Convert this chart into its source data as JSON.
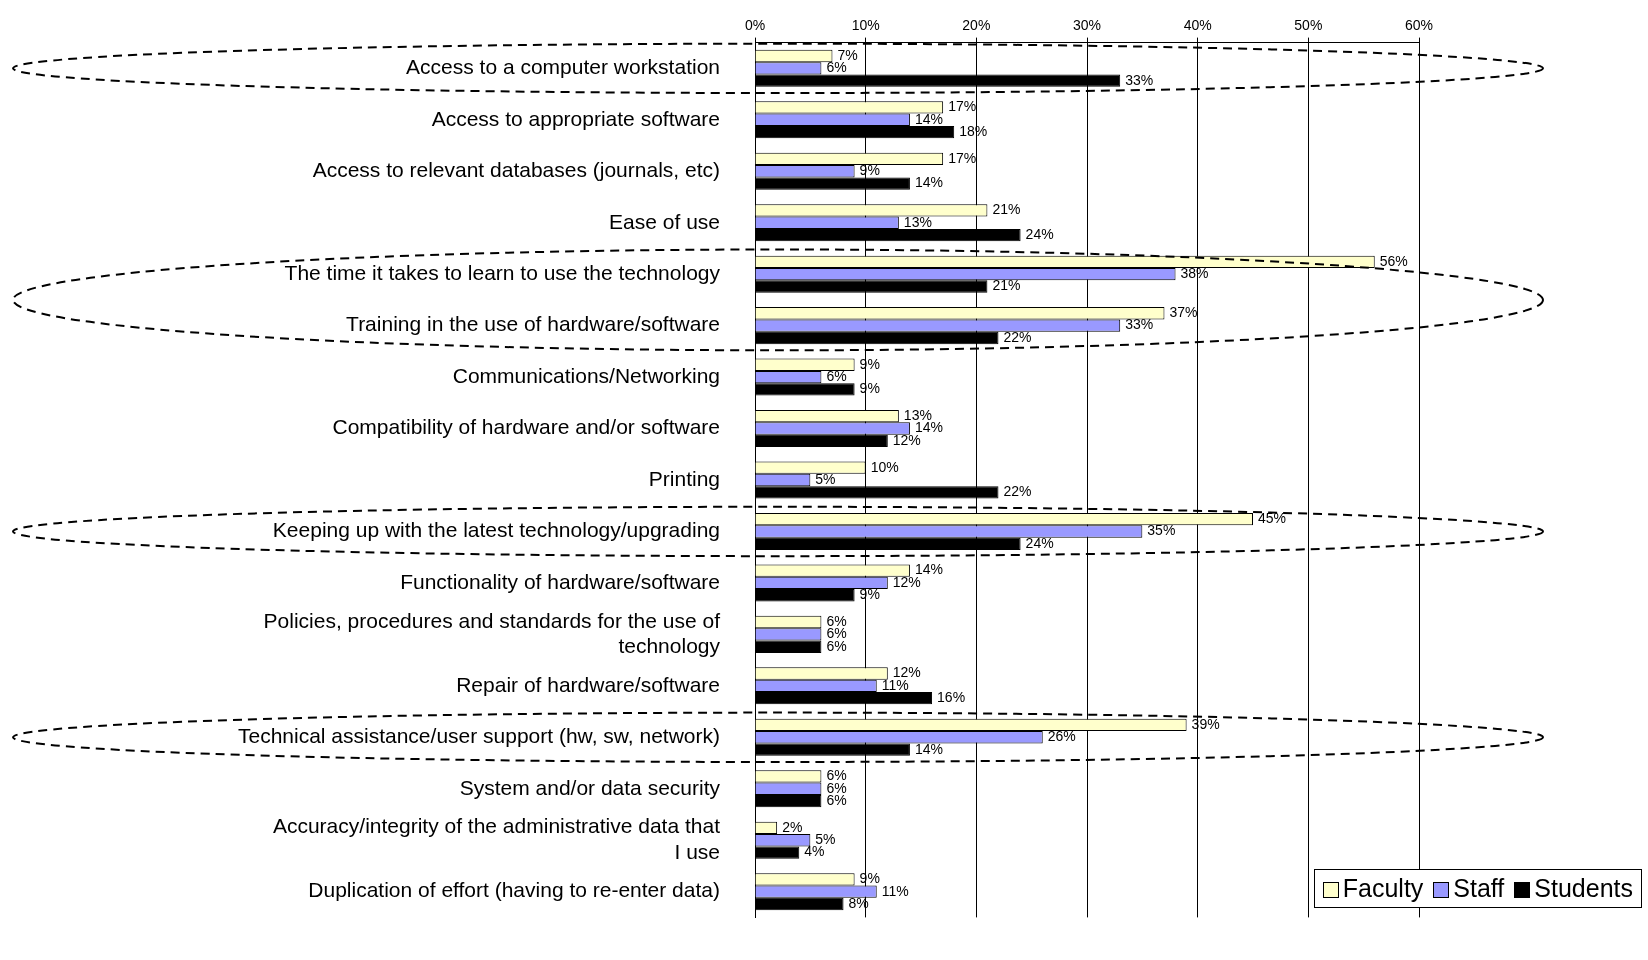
{
  "chart_data": {
    "type": "bar",
    "orientation": "horizontal",
    "categories": [
      "Access to a computer workstation",
      "Access to appropriate software",
      "Access to relevant databases (journals, etc)",
      "Ease of use",
      "The time it takes to learn to use the technology",
      "Training in the use of hardware/software",
      "Communications/Networking",
      "Compatibility of hardware and/or software",
      "Printing",
      "Keeping up with the latest technology/upgrading",
      "Functionality of hardware/software",
      "Policies, procedures and standards for the use of technology",
      "Repair of hardware/software",
      "Technical assistance/user support (hw, sw, network)",
      "System and/or data security",
      "Accuracy/integrity of the administrative data that I use",
      "Duplication of effort (having to re-enter data)"
    ],
    "series": [
      {
        "name": "Faculty",
        "color": "#ffffcc",
        "values": [
          7,
          17,
          17,
          21,
          56,
          37,
          9,
          13,
          10,
          45,
          14,
          6,
          12,
          39,
          6,
          2,
          9
        ],
        "value_labels": [
          "7%",
          "17%",
          "17%",
          "21%",
          "56%",
          "37%",
          "9%",
          "13%",
          "10%",
          "45%",
          "14%",
          "6%",
          "12%",
          "39%",
          "6%",
          "2%",
          "9%"
        ]
      },
      {
        "name": "Staff",
        "color": "#9999ff",
        "values": [
          6,
          14,
          9,
          13,
          38,
          33,
          6,
          14,
          5,
          35,
          12,
          6,
          11,
          26,
          6,
          5,
          11
        ],
        "value_labels": [
          "6%",
          "14%",
          "9%",
          "13%",
          "38%",
          "33%",
          "6%",
          "14%",
          "5%",
          "35%",
          "12%",
          "6%",
          "11%",
          "26%",
          "6%",
          "5%",
          "11%"
        ]
      },
      {
        "name": "Students",
        "color": "#000000",
        "values": [
          33,
          18,
          14,
          24,
          21,
          22,
          9,
          12,
          22,
          24,
          9,
          6,
          16,
          14,
          6,
          4,
          8
        ],
        "value_labels": [
          "33%",
          "18%",
          "14%",
          "24%",
          "21%",
          "22%",
          "9%",
          "12%",
          "22%",
          "24%",
          "9%",
          "6%",
          "16%",
          "14%",
          "6%",
          "4%",
          "8%"
        ]
      }
    ],
    "xlim": [
      0,
      60
    ],
    "xticks": [
      {
        "value": 0,
        "label": "0%"
      },
      {
        "value": 10,
        "label": "10%"
      },
      {
        "value": 20,
        "label": "20%"
      },
      {
        "value": 30,
        "label": "30%"
      },
      {
        "value": 40,
        "label": "40%"
      },
      {
        "value": 50,
        "label": "50%"
      },
      {
        "value": 60,
        "label": "60%"
      }
    ],
    "grid": "x",
    "legend": "bottom right"
  }
}
